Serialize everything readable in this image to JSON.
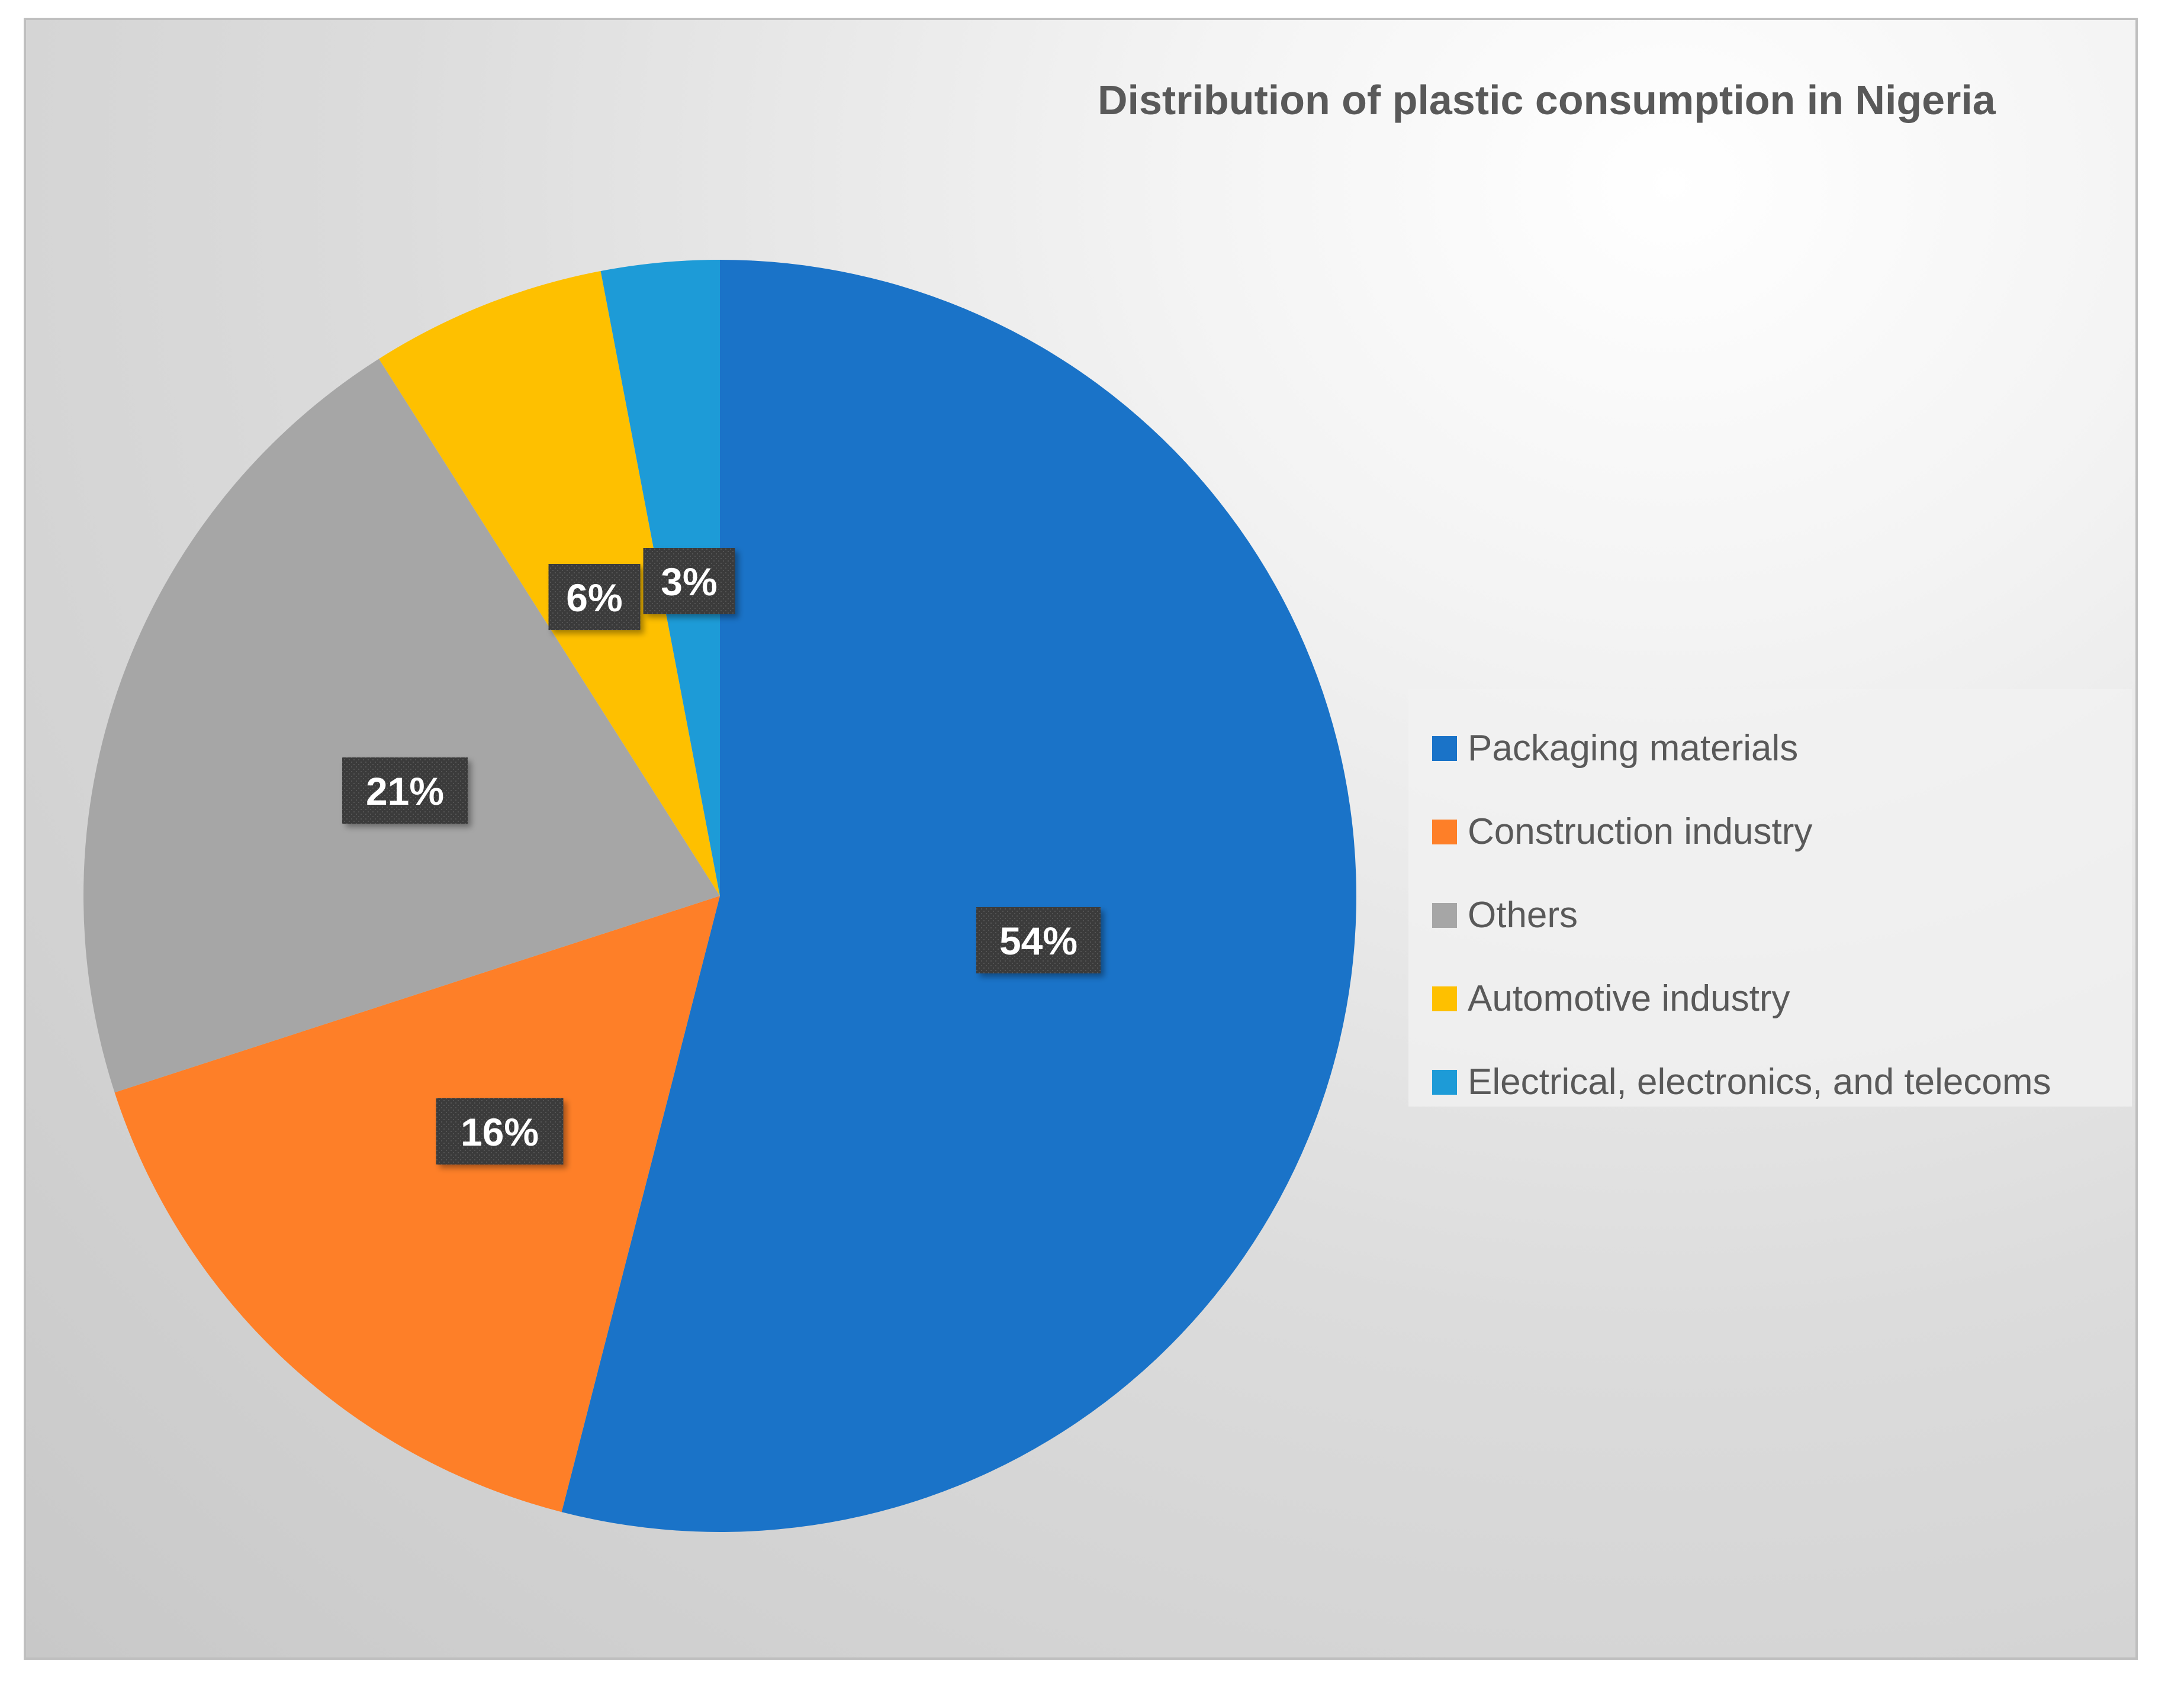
{
  "chart_data": {
    "type": "pie",
    "title": "Distribution of plastic consumption in Nigeria",
    "categories": [
      "Packaging materials",
      "Construction industry",
      "Others",
      "Automotive industry",
      "Electrical, electronics, and telecoms"
    ],
    "values": [
      54,
      16,
      21,
      6,
      3
    ],
    "value_labels": [
      "54%",
      "16%",
      "21%",
      "6%",
      "3%"
    ],
    "colors": [
      "#1a73c8",
      "#fe7f28",
      "#a6a6a6",
      "#fec000",
      "#1d9bd7"
    ],
    "legend_position": "right",
    "start_angle": "12 o'clock, clockwise"
  }
}
